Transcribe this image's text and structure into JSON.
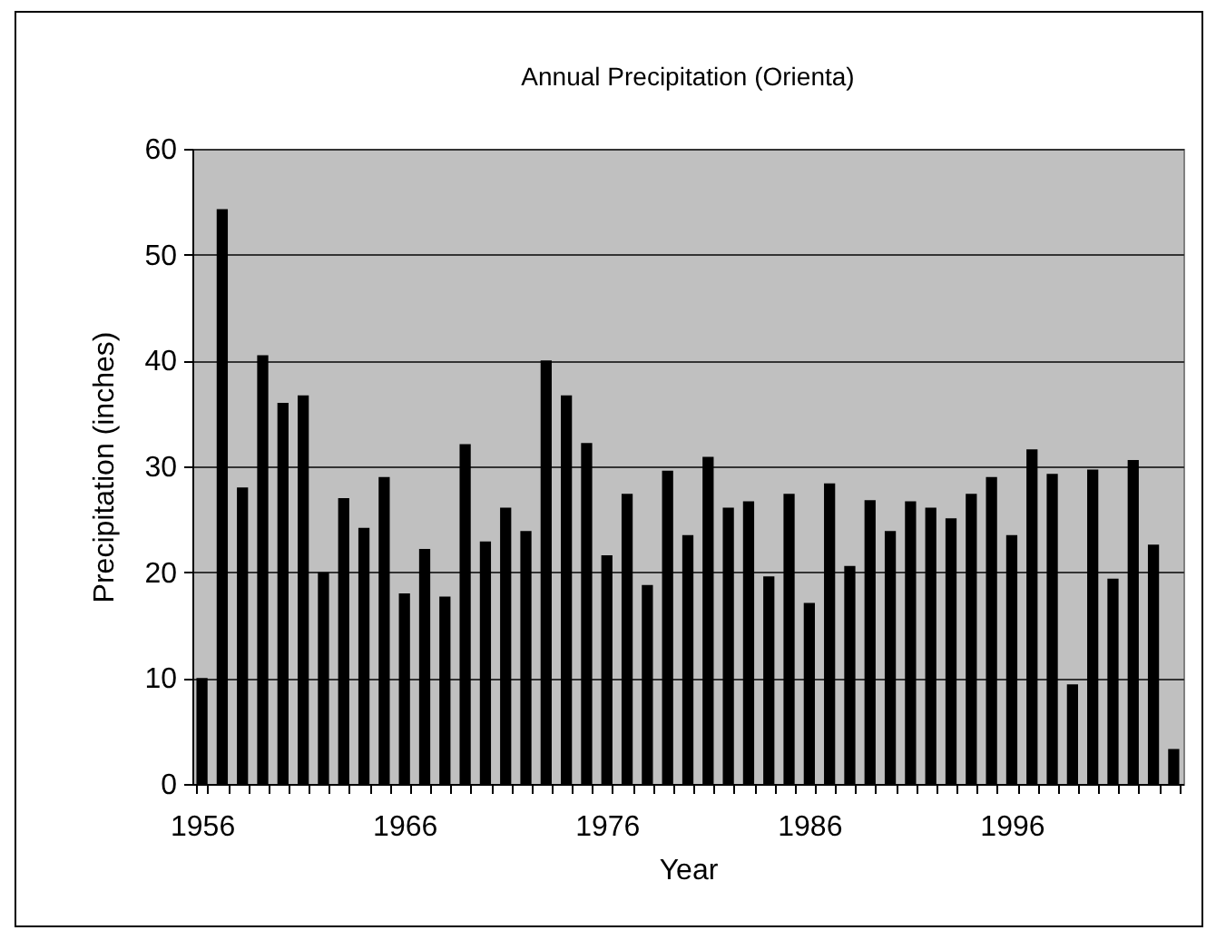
{
  "chart_data": {
    "type": "bar",
    "title": "Annual Precipitation (Orienta)",
    "xlabel": "Year",
    "ylabel": "Precipitation (inches)",
    "categories": [
      "1956",
      null,
      null,
      null,
      null,
      null,
      null,
      null,
      null,
      null,
      "1966",
      null,
      null,
      null,
      null,
      null,
      null,
      null,
      null,
      null,
      "1976",
      null,
      null,
      null,
      null,
      null,
      null,
      null,
      null,
      null,
      "1986",
      null,
      null,
      null,
      null,
      null,
      null,
      null,
      null,
      null,
      "1996",
      null,
      null,
      null,
      null,
      null,
      null,
      null,
      null
    ],
    "values": [
      10,
      54.3,
      28,
      40.5,
      36,
      36.7,
      20,
      27,
      24.2,
      29,
      18,
      22.2,
      17.7,
      32.1,
      22.9,
      26.1,
      23.9,
      40,
      36.7,
      32.2,
      21.6,
      27.4,
      18.8,
      29.6,
      23.5,
      30.9,
      26.1,
      26.7,
      19.6,
      27.4,
      17.1,
      28.4,
      20.6,
      26.8,
      23.9,
      26.7,
      26.1,
      25.1,
      27.4,
      29,
      23.5,
      31.6,
      29.3,
      9.4,
      29.7,
      19.4,
      30.6,
      22.6,
      3.3
    ],
    "color": "#000000",
    "ylim": [
      0,
      60
    ],
    "yticks": [
      0,
      10,
      20,
      30,
      40,
      50,
      60
    ],
    "grid": "y"
  }
}
